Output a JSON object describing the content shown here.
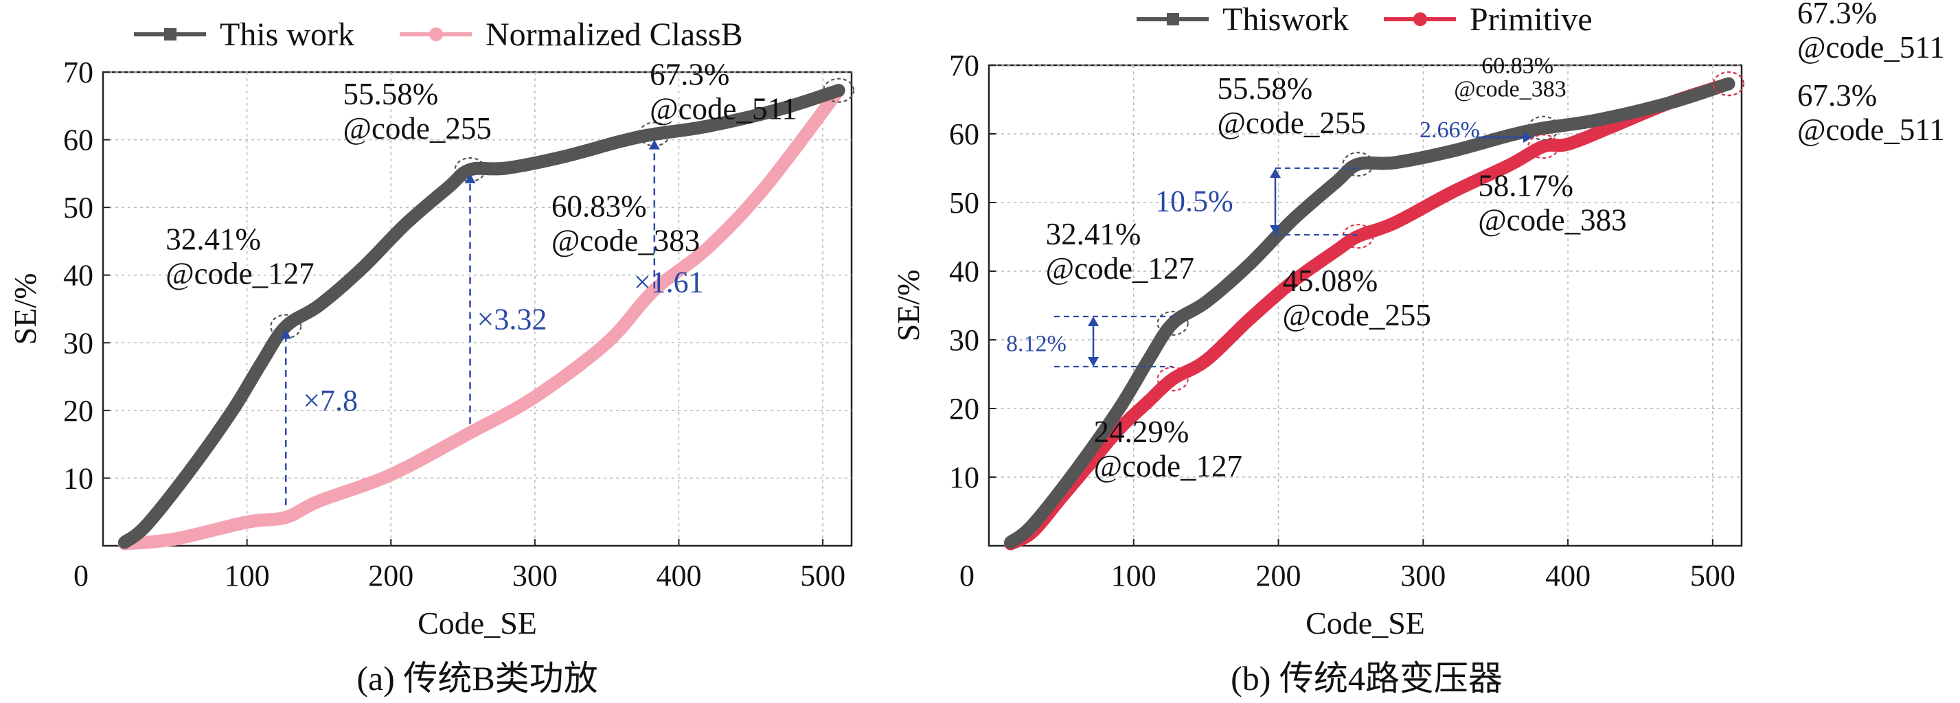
{
  "chart_data": [
    {
      "id": "a",
      "type": "line",
      "caption": "(a) 传统B类功放",
      "xlabel": "Code_SE",
      "ylabel": "SE/%",
      "xlim": [
        0,
        520
      ],
      "ylim": [
        0,
        70
      ],
      "xticks": [
        0,
        100,
        200,
        300,
        400,
        500
      ],
      "xtick_labels": [
        "0",
        "100",
        "200",
        "300",
        "400",
        "500"
      ],
      "yticks": [
        10,
        20,
        30,
        40,
        50,
        60,
        70
      ],
      "ytick_labels": [
        "10",
        "20",
        "30",
        "40",
        "50",
        "60",
        "70"
      ],
      "grid": true,
      "legend": "top",
      "series": [
        {
          "name": "This work",
          "color": "#555555",
          "x": [
            15,
            30,
            60,
            90,
            110,
            127,
            150,
            180,
            210,
            240,
            255,
            280,
            320,
            360,
            383,
            420,
            470,
            511
          ],
          "y": [
            0.5,
            3,
            11,
            20,
            27,
            32.41,
            35.5,
            41,
            47.5,
            53,
            55.58,
            55.8,
            57.5,
            59.8,
            60.83,
            62,
            64.5,
            67.3
          ]
        },
        {
          "name": "Normalized ClassB",
          "color": "#f4a3b2",
          "x": [
            15,
            50,
            100,
            127,
            150,
            200,
            255,
            300,
            350,
            383,
            420,
            460,
            511
          ],
          "y": [
            0.3,
            1,
            3.5,
            4.2,
            6.6,
            10.5,
            16.7,
            22,
            30,
            37.8,
            44,
            53,
            67.3
          ]
        }
      ],
      "annotations": [
        {
          "x": 127,
          "y": 32.41,
          "label": "32.41%",
          "sublabel": "@code_127"
        },
        {
          "x": 255,
          "y": 55.58,
          "label": "55.58%",
          "sublabel": "@code_255"
        },
        {
          "x": 383,
          "y": 60.83,
          "label": "60.83%",
          "sublabel": "@code_383"
        },
        {
          "x": 511,
          "y": 67.3,
          "label": "67.3%",
          "sublabel": "@code_511"
        }
      ],
      "ratios": [
        {
          "x": 127,
          "y_from": 6,
          "y_to": 32,
          "label": "×7.8"
        },
        {
          "x": 255,
          "y_from": 18,
          "y_to": 55,
          "label": "×3.32"
        },
        {
          "x": 383,
          "y_from": 38,
          "y_to": 60,
          "label": "×1.61"
        }
      ]
    },
    {
      "id": "b",
      "type": "line",
      "caption": "(b) 传统4路变压器",
      "xlabel": "Code_SE",
      "ylabel": "SE/%",
      "xlim": [
        0,
        520
      ],
      "ylim": [
        0,
        70
      ],
      "xticks": [
        0,
        100,
        200,
        300,
        400,
        500
      ],
      "xtick_labels": [
        "0",
        "100",
        "200",
        "300",
        "400",
        "500"
      ],
      "yticks": [
        10,
        20,
        30,
        40,
        50,
        60,
        70
      ],
      "ytick_labels": [
        "10",
        "20",
        "30",
        "40",
        "50",
        "60",
        "70"
      ],
      "grid": true,
      "legend": "top",
      "series": [
        {
          "name": "Thiswork",
          "color": "#555555",
          "x": [
            15,
            30,
            60,
            90,
            110,
            127,
            150,
            180,
            210,
            240,
            255,
            280,
            320,
            360,
            383,
            420,
            470,
            511
          ],
          "y": [
            0.5,
            3,
            11,
            20,
            27,
            32.41,
            35.5,
            41,
            47.5,
            53,
            55.58,
            55.8,
            57.5,
            59.8,
            60.83,
            62,
            64.5,
            67.3
          ]
        },
        {
          "name": "Primitive",
          "color": "#e0314b",
          "x": [
            15,
            30,
            50,
            70,
            90,
            110,
            127,
            150,
            180,
            210,
            240,
            255,
            280,
            320,
            360,
            383,
            400,
            430,
            470,
            511
          ],
          "y": [
            0.3,
            2,
            7,
            12,
            17,
            21,
            24.29,
            27,
            33,
            38.5,
            43,
            45.08,
            47,
            51.5,
            55.5,
            58.17,
            58.5,
            61,
            64.5,
            67.3
          ]
        }
      ],
      "annotations": [
        {
          "x": 127,
          "y": 32.41,
          "label": "32.41%",
          "sublabel": "@code_127"
        },
        {
          "x": 255,
          "y": 55.58,
          "label": "55.58%",
          "sublabel": "@code_255"
        },
        {
          "x": 383,
          "y": 60.83,
          "label": "60.83%",
          "sublabel": "@code_383"
        },
        {
          "x": 511,
          "y": 67.3,
          "label": "67.3%",
          "sublabel": "@code_511"
        },
        {
          "x": 127,
          "y": 24.29,
          "label": "24.29%",
          "sublabel": "@code_127"
        },
        {
          "x": 255,
          "y": 45.08,
          "label": "45.08%",
          "sublabel": "@code_255"
        },
        {
          "x": 383,
          "y": 58.17,
          "label": "58.17%",
          "sublabel": "@code_383"
        },
        {
          "x": 511,
          "y": 67.3,
          "label": "67.3%",
          "sublabel": "@code_511"
        }
      ],
      "differences": [
        {
          "x": 127,
          "y_top": 33.4,
          "y_bottom": 26.1,
          "label": "8.12%"
        },
        {
          "x": 255,
          "y_top": 55,
          "y_bottom": 45.3,
          "label": "10.5%"
        },
        {
          "x": 383,
          "y_top": 60.83,
          "y_bottom": 58.17,
          "label": "2.66%"
        }
      ]
    }
  ]
}
